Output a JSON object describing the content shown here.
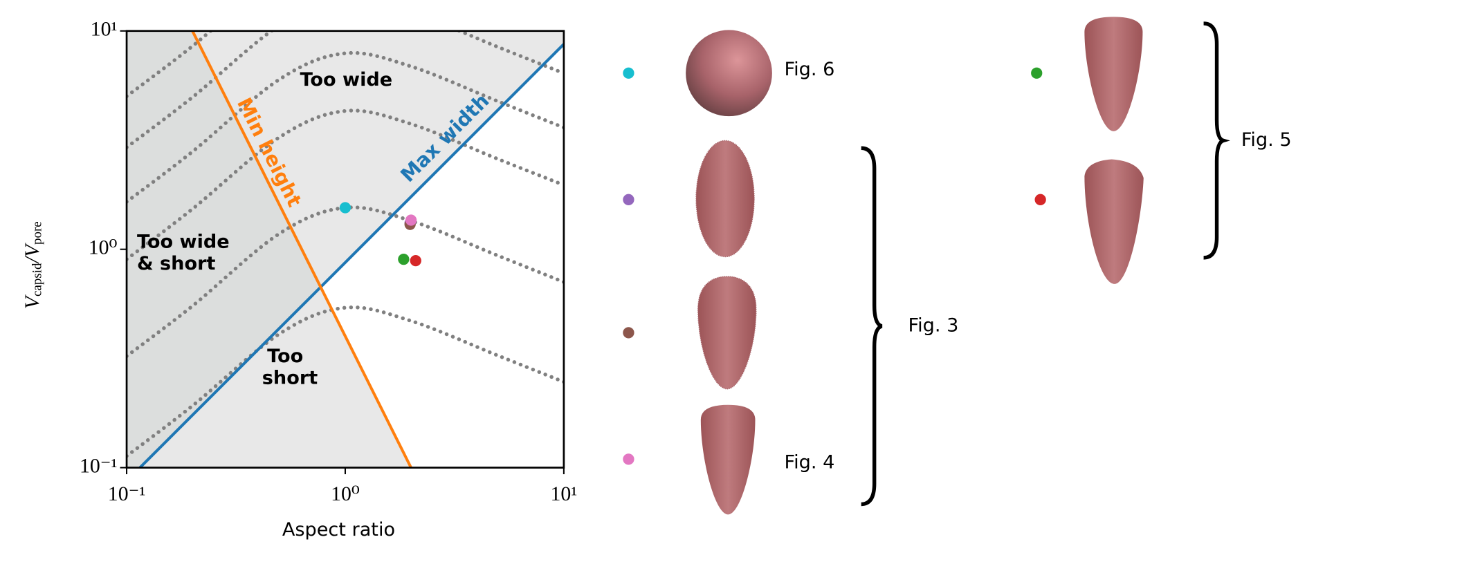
{
  "chart_data": {
    "type": "scatter",
    "xlabel": "Aspect ratio",
    "ylabel": [
      "V",
      "capsid",
      "/V",
      "pore"
    ],
    "log_x": true,
    "log_y": true,
    "xlim": [
      0.1,
      10
    ],
    "ylim": [
      0.1,
      10
    ],
    "xticks": [
      {
        "value": 0.1,
        "label": "10⁻¹"
      },
      {
        "value": 1,
        "label": "10⁰"
      },
      {
        "value": 10,
        "label": "10¹"
      }
    ],
    "yticks": [
      {
        "value": 0.1,
        "label": "10⁻¹"
      },
      {
        "value": 1,
        "label": "10⁰"
      },
      {
        "value": 10,
        "label": "10¹"
      }
    ],
    "region_colors": {
      "excluded": "#e8e8e8",
      "doubly_excluded": "#dcdedd"
    },
    "regions": [
      "Too wide",
      "Too wide",
      "& short",
      "Too",
      "short"
    ],
    "lines": [
      {
        "name": "Max width",
        "color": "#1f77b4",
        "x": [
          0.115,
          10
        ],
        "values": [
          0.1,
          8.7
        ]
      },
      {
        "name": "Min height",
        "color": "#ff7f0e",
        "x": [
          0.2,
          2
        ],
        "values": [
          10,
          0.1
        ]
      }
    ],
    "contours": {
      "color": "#808080",
      "x": [
        0.1,
        0.2,
        0.5,
        1,
        2,
        5,
        10
      ],
      "curves": [
        [
          0.113,
          0.192,
          0.41,
          0.54,
          0.47,
          0.326,
          0.247
        ],
        [
          0.324,
          0.55,
          1.18,
          1.55,
          1.35,
          0.935,
          0.708
        ],
        [
          0.9,
          1.53,
          3.26,
          4.3,
          3.75,
          2.59,
          1.97
        ],
        [
          1.65,
          2.8,
          6.0,
          7.9,
          6.88,
          4.76,
          3.61
        ],
        [
          2.93,
          4.97,
          10.6,
          14,
          12.2,
          8.44,
          6.4
        ],
        [
          5.02,
          8.52,
          18.2,
          24,
          20.9,
          14.5,
          11
        ]
      ]
    },
    "series": [
      {
        "color": "#17becf",
        "x": [
          1.0
        ],
        "values": [
          1.55
        ]
      },
      {
        "color": "#9467bd",
        "x": [
          1.98
        ],
        "values": [
          1.32
        ]
      },
      {
        "color": "#8c564b",
        "x": [
          1.98
        ],
        "values": [
          1.3
        ]
      },
      {
        "color": "#e377c2",
        "x": [
          2.0
        ],
        "values": [
          1.36
        ]
      },
      {
        "color": "#2ca02c",
        "x": [
          1.85
        ],
        "values": [
          0.9
        ]
      },
      {
        "color": "#d62728",
        "x": [
          2.1
        ],
        "values": [
          0.887
        ]
      }
    ],
    "figure_refs": [
      "Fig. 6",
      "Fig. 3",
      "Fig. 4",
      "Fig. 5"
    ]
  }
}
